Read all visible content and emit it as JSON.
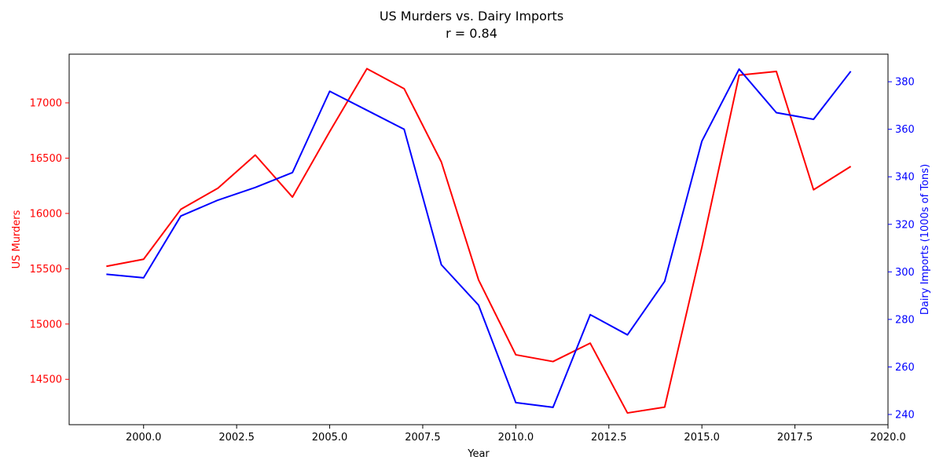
{
  "chart_data": {
    "type": "line",
    "title": "US Murders vs. Dairy Imports",
    "subtitle": "r = 0.84",
    "xlabel": "Year",
    "ylabel_left": "US Murders",
    "ylabel_right": "Dairy Imports (1000s of Tons)",
    "x": [
      1999,
      2000,
      2001,
      2002,
      2003,
      2004,
      2005,
      2006,
      2007,
      2008,
      2009,
      2010,
      2011,
      2012,
      2013,
      2014,
      2015,
      2016,
      2017,
      2018,
      2019
    ],
    "x_ticks": [
      "2000.0",
      "2002.5",
      "2005.0",
      "2007.5",
      "2010.0",
      "2012.5",
      "2015.0",
      "2017.5",
      "2020.0"
    ],
    "x_tick_values": [
      2000,
      2002.5,
      2005,
      2007.5,
      2010,
      2012.5,
      2015,
      2017.5,
      2020
    ],
    "xlim": [
      1998.0,
      2020.0
    ],
    "y_left_ticks": [
      14500,
      15000,
      15500,
      16000,
      16500,
      17000
    ],
    "ylim_left": [
      14090,
      17440
    ],
    "y_right_ticks": [
      240,
      260,
      280,
      300,
      320,
      340,
      360,
      380
    ],
    "ylim_right": [
      235.7,
      391.6
    ],
    "grid": false,
    "colors": {
      "left": "#ff0000",
      "right": "#0000ff",
      "axis": "#000000"
    },
    "series": [
      {
        "axis": "left",
        "color": "#ff0000",
        "values": [
          15522,
          15586,
          16037,
          16229,
          16528,
          16148,
          16740,
          17309,
          17128,
          16465,
          15399,
          14722,
          14661,
          14827,
          14196,
          14249,
          15696,
          17250,
          17284,
          16214,
          16425
        ]
      },
      {
        "axis": "right",
        "color": "#0000ff",
        "values": [
          299,
          297.5,
          323.5,
          330.2,
          335.5,
          341.8,
          376,
          368,
          360,
          303,
          286,
          245,
          243,
          282,
          273.5,
          296,
          355,
          385.3,
          367,
          364.2,
          384.4
        ]
      }
    ]
  }
}
